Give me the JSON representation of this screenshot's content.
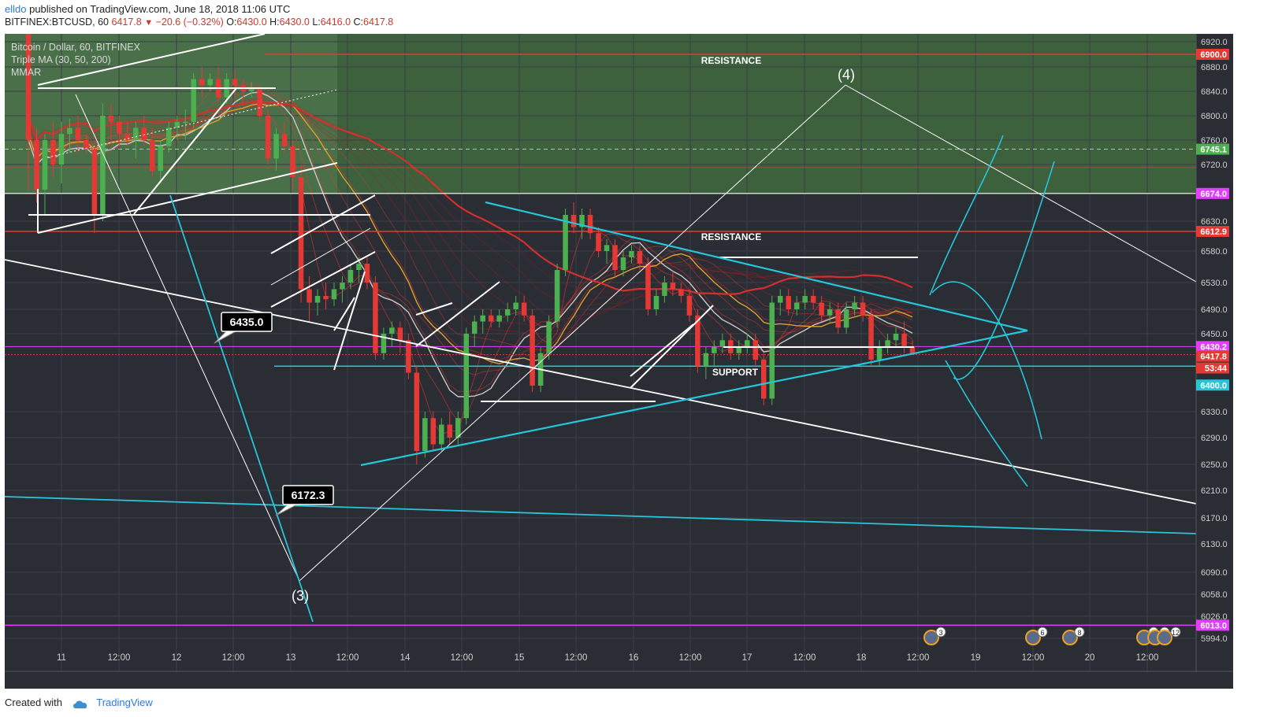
{
  "header": {
    "user": "elldo",
    "published": "published on TradingView.com, June 18, 2018 11:06 UTC",
    "symbol": "BITFINEX:BTCUSD, 60",
    "last": "6417.8",
    "change": "−20.6 (−0.32%)",
    "open_label": "O:",
    "open": "6430.0",
    "high_label": "H:",
    "high": "6430.0",
    "low_label": "L:",
    "low": "6416.0",
    "close_label": "C:",
    "close": "6417.8"
  },
  "legend": {
    "line1": "Bitcoin / Dollar, 60, BITFINEX",
    "line2": "Triple MA (30, 50, 200)",
    "line3": "MMAR"
  },
  "footer": {
    "created": "Created with",
    "brand": "TradingView"
  },
  "colors": {
    "background": "#2b2d34",
    "zone_green": "#3f6b3e",
    "bull": "#4caf50",
    "bear": "#e53935",
    "cyan": "#26c6da",
    "resistance": "#e53935",
    "magenta": "#e040fb"
  },
  "chart_data": {
    "type": "candlestick",
    "y_axis": {
      "ticks": [
        6920.0,
        6880.0,
        6840.0,
        6800.0,
        6760.0,
        6720.0,
        6630.0,
        6580.0,
        6530.0,
        6490.0,
        6450.0,
        6330.0,
        6290.0,
        6250.0,
        6210.0,
        6170.0,
        6130.0,
        6090.0,
        6058.0,
        6026.0,
        5994.0
      ],
      "range": [
        5980,
        6935
      ]
    },
    "x_axis": {
      "ticks": [
        "11",
        "12:00",
        "12",
        "12:00",
        "13",
        "12:00",
        "14",
        "12:00",
        "15",
        "12:00",
        "16",
        "12:00",
        "17",
        "12:00",
        "18",
        "12:00",
        "19",
        "12:00",
        "20",
        "12:00"
      ]
    },
    "price_labels": [
      {
        "value": "6900.0",
        "color": "#e53935"
      },
      {
        "value": "6745.1",
        "color": "#4caf50"
      },
      {
        "value": "6674.0",
        "color": "#e040fb"
      },
      {
        "value": "6612.9",
        "color": "#e53935"
      },
      {
        "value": "6430.2",
        "color": "#e040fb"
      },
      {
        "value": "6417.8",
        "color": "#e53935"
      },
      {
        "value": "53:44",
        "color": "#e53935"
      },
      {
        "value": "6400.0",
        "color": "#26c6da"
      },
      {
        "value": "6013.0",
        "color": "#e040fb"
      }
    ],
    "annotations": {
      "resistance_top": "RESISTANCE",
      "resistance_mid": "RESISTANCE",
      "support": "SUPPORT",
      "wave4": "(4)",
      "wave3": "(3)",
      "callout_6435": "6435.0",
      "callout_6172": "6172.3"
    },
    "event_badges": [
      "3",
      "6",
      "8",
      "5",
      "2",
      "12"
    ],
    "candles": [
      [
        7015,
        7020,
        6680,
        6760
      ],
      [
        6760,
        6780,
        6660,
        6680
      ],
      [
        6680,
        6770,
        6640,
        6760
      ],
      [
        6760,
        6790,
        6700,
        6720
      ],
      [
        6720,
        6790,
        6690,
        6770
      ],
      [
        6770,
        6795,
        6740,
        6780
      ],
      [
        6780,
        6800,
        6740,
        6760
      ],
      [
        6760,
        6770,
        6740,
        6745
      ],
      [
        6745,
        6760,
        6610,
        6640
      ],
      [
        6640,
        6820,
        6630,
        6800
      ],
      [
        6800,
        6820,
        6760,
        6790
      ],
      [
        6790,
        6800,
        6750,
        6770
      ],
      [
        6770,
        6790,
        6750,
        6760
      ],
      [
        6760,
        6790,
        6730,
        6780
      ],
      [
        6780,
        6800,
        6750,
        6760
      ],
      [
        6760,
        6780,
        6700,
        6710
      ],
      [
        6710,
        6760,
        6690,
        6750
      ],
      [
        6750,
        6790,
        6740,
        6780
      ],
      [
        6780,
        6800,
        6760,
        6790
      ],
      [
        6790,
        6810,
        6760,
        6790
      ],
      [
        6790,
        6870,
        6780,
        6860
      ],
      [
        6860,
        6880,
        6830,
        6850
      ],
      [
        6850,
        6870,
        6840,
        6860
      ],
      [
        6860,
        6880,
        6820,
        6830
      ],
      [
        6830,
        6870,
        6820,
        6860
      ],
      [
        6860,
        6875,
        6830,
        6850
      ],
      [
        6850,
        6860,
        6820,
        6840
      ],
      [
        6840,
        6855,
        6830,
        6845
      ],
      [
        6845,
        6850,
        6790,
        6800
      ],
      [
        6800,
        6810,
        6720,
        6730
      ],
      [
        6730,
        6780,
        6710,
        6770
      ],
      [
        6770,
        6790,
        6740,
        6750
      ],
      [
        6750,
        6760,
        6680,
        6700
      ],
      [
        6700,
        6720,
        6500,
        6520
      ],
      [
        6520,
        6540,
        6470,
        6500
      ],
      [
        6500,
        6520,
        6480,
        6510
      ],
      [
        6510,
        6530,
        6490,
        6505
      ],
      [
        6505,
        6530,
        6495,
        6520
      ],
      [
        6520,
        6540,
        6500,
        6530
      ],
      [
        6530,
        6560,
        6520,
        6550
      ],
      [
        6550,
        6570,
        6530,
        6560
      ],
      [
        6560,
        6570,
        6520,
        6530
      ],
      [
        6530,
        6540,
        6410,
        6420
      ],
      [
        6420,
        6460,
        6410,
        6450
      ],
      [
        6450,
        6470,
        6430,
        6460
      ],
      [
        6460,
        6470,
        6420,
        6440
      ],
      [
        6440,
        6450,
        6380,
        6390
      ],
      [
        6390,
        6400,
        6250,
        6270
      ],
      [
        6270,
        6330,
        6260,
        6320
      ],
      [
        6320,
        6330,
        6270,
        6280
      ],
      [
        6280,
        6320,
        6270,
        6310
      ],
      [
        6310,
        6330,
        6280,
        6290
      ],
      [
        6290,
        6330,
        6280,
        6320
      ],
      [
        6320,
        6460,
        6310,
        6450
      ],
      [
        6450,
        6480,
        6430,
        6470
      ],
      [
        6470,
        6490,
        6450,
        6480
      ],
      [
        6480,
        6490,
        6460,
        6470
      ],
      [
        6470,
        6490,
        6460,
        6480
      ],
      [
        6480,
        6500,
        6470,
        6490
      ],
      [
        6490,
        6510,
        6480,
        6500
      ],
      [
        6500,
        6510,
        6470,
        6480
      ],
      [
        6480,
        6490,
        6360,
        6370
      ],
      [
        6370,
        6430,
        6360,
        6420
      ],
      [
        6420,
        6480,
        6410,
        6470
      ],
      [
        6470,
        6560,
        6460,
        6550
      ],
      [
        6550,
        6650,
        6540,
        6640
      ],
      [
        6640,
        6660,
        6610,
        6620
      ],
      [
        6620,
        6650,
        6600,
        6640
      ],
      [
        6640,
        6650,
        6600,
        6610
      ],
      [
        6610,
        6620,
        6570,
        6580
      ],
      [
        6580,
        6600,
        6560,
        6590
      ],
      [
        6590,
        6600,
        6540,
        6550
      ],
      [
        6550,
        6580,
        6540,
        6570
      ],
      [
        6570,
        6590,
        6560,
        6580
      ],
      [
        6580,
        6590,
        6550,
        6560
      ],
      [
        6560,
        6570,
        6480,
        6490
      ],
      [
        6490,
        6520,
        6480,
        6510
      ],
      [
        6510,
        6540,
        6500,
        6530
      ],
      [
        6530,
        6550,
        6510,
        6520
      ],
      [
        6520,
        6530,
        6500,
        6510
      ],
      [
        6510,
        6520,
        6470,
        6480
      ],
      [
        6480,
        6490,
        6390,
        6400
      ],
      [
        6400,
        6430,
        6380,
        6420
      ],
      [
        6420,
        6440,
        6400,
        6430
      ],
      [
        6430,
        6450,
        6420,
        6440
      ],
      [
        6440,
        6450,
        6410,
        6420
      ],
      [
        6420,
        6440,
        6410,
        6430
      ],
      [
        6430,
        6450,
        6420,
        6440
      ],
      [
        6440,
        6450,
        6400,
        6410
      ],
      [
        6410,
        6420,
        6340,
        6350
      ],
      [
        6350,
        6510,
        6340,
        6500
      ],
      [
        6500,
        6520,
        6480,
        6510
      ],
      [
        6510,
        6520,
        6480,
        6490
      ],
      [
        6490,
        6510,
        6480,
        6500
      ],
      [
        6500,
        6520,
        6490,
        6510
      ],
      [
        6510,
        6520,
        6490,
        6500
      ],
      [
        6500,
        6510,
        6470,
        6480
      ],
      [
        6480,
        6500,
        6470,
        6490
      ],
      [
        6490,
        6500,
        6450,
        6460
      ],
      [
        6460,
        6500,
        6450,
        6490
      ],
      [
        6490,
        6510,
        6480,
        6500
      ],
      [
        6500,
        6510,
        6470,
        6480
      ],
      [
        6480,
        6490,
        6400,
        6410
      ],
      [
        6410,
        6440,
        6400,
        6430
      ],
      [
        6430,
        6450,
        6420,
        6440
      ],
      [
        6440,
        6460,
        6430,
        6450
      ],
      [
        6450,
        6470,
        6420,
        6430
      ],
      [
        6430,
        6440,
        6418,
        6418
      ]
    ]
  }
}
